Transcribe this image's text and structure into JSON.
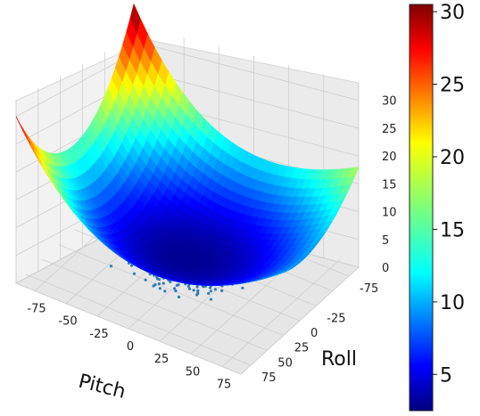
{
  "chart_data": {
    "type": "surface3d",
    "title": "",
    "xlabel": "Pitch",
    "ylabel": "Roll",
    "zlabel": "",
    "x_ticks": [
      "-75",
      "-50",
      "-25",
      "0",
      "25",
      "50",
      "75"
    ],
    "y_ticks": [
      "-75",
      "-25",
      "0",
      "25",
      "50",
      "75"
    ],
    "z_ticks": [
      "0",
      "5",
      "10",
      "15",
      "20",
      "25",
      "30"
    ],
    "xlim": [
      -90,
      90
    ],
    "ylim": [
      -90,
      90
    ],
    "zlim": [
      0,
      33
    ],
    "surface": {
      "form": "bowl",
      "z_min": 3,
      "corner_values": {
        "pitch_-90_roll_-90": 31,
        "pitch_-90_roll_90": 30,
        "pitch_90_roll_90": 21,
        "pitch_90_roll_-90": 18
      }
    },
    "scatter": {
      "color": "#2e7cb8",
      "description_points": "dense cloud of sampled points beneath the surface minimum"
    },
    "colormap": "jet",
    "colorbar": {
      "range": [
        2.5,
        30.5
      ],
      "ticks": [
        "5",
        "10",
        "15",
        "20",
        "25",
        "30"
      ]
    },
    "grid": true
  }
}
